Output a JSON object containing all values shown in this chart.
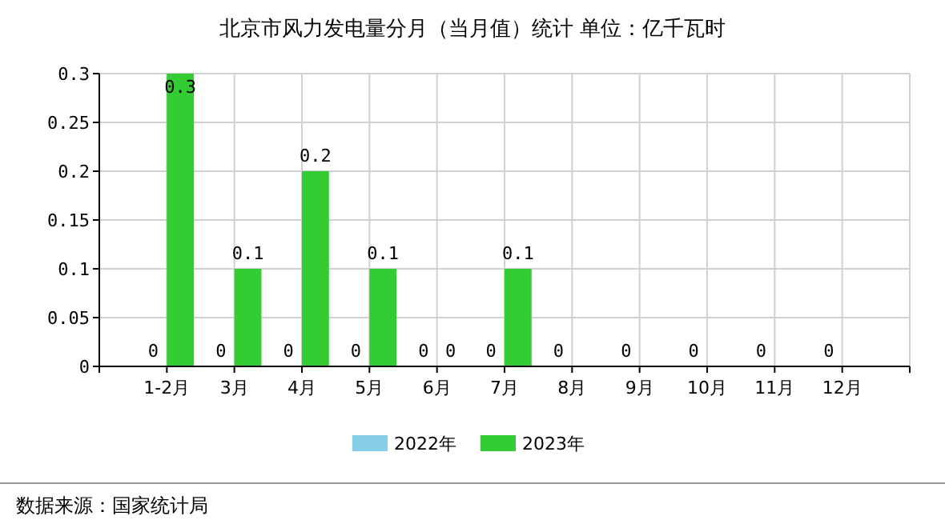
{
  "chart_data": {
    "type": "bar",
    "title": "北京市风力发电量分月（当月值）统计 单位：亿千瓦时",
    "categories": [
      "1-2月",
      "3月",
      "4月",
      "5月",
      "6月",
      "7月",
      "8月",
      "9月",
      "10月",
      "11月",
      "12月"
    ],
    "series": [
      {
        "name": "2022年",
        "color": "#87ceeb",
        "values": [
          0,
          0,
          0,
          0,
          0,
          0,
          0,
          0,
          0,
          0,
          0
        ]
      },
      {
        "name": "2023年",
        "color": "#33cc33",
        "values": [
          0.3,
          0.1,
          0.2,
          0.1,
          0,
          0.1,
          null,
          null,
          null,
          null,
          null
        ]
      }
    ],
    "ylim": [
      0,
      0.3
    ],
    "yticks": [
      0,
      0.05,
      0.1,
      0.15,
      0.2,
      0.25,
      0.3
    ],
    "grid": true,
    "legend": "bottom",
    "data_labels": true,
    "annotations": [
      "数据来源：国家统计局"
    ]
  }
}
